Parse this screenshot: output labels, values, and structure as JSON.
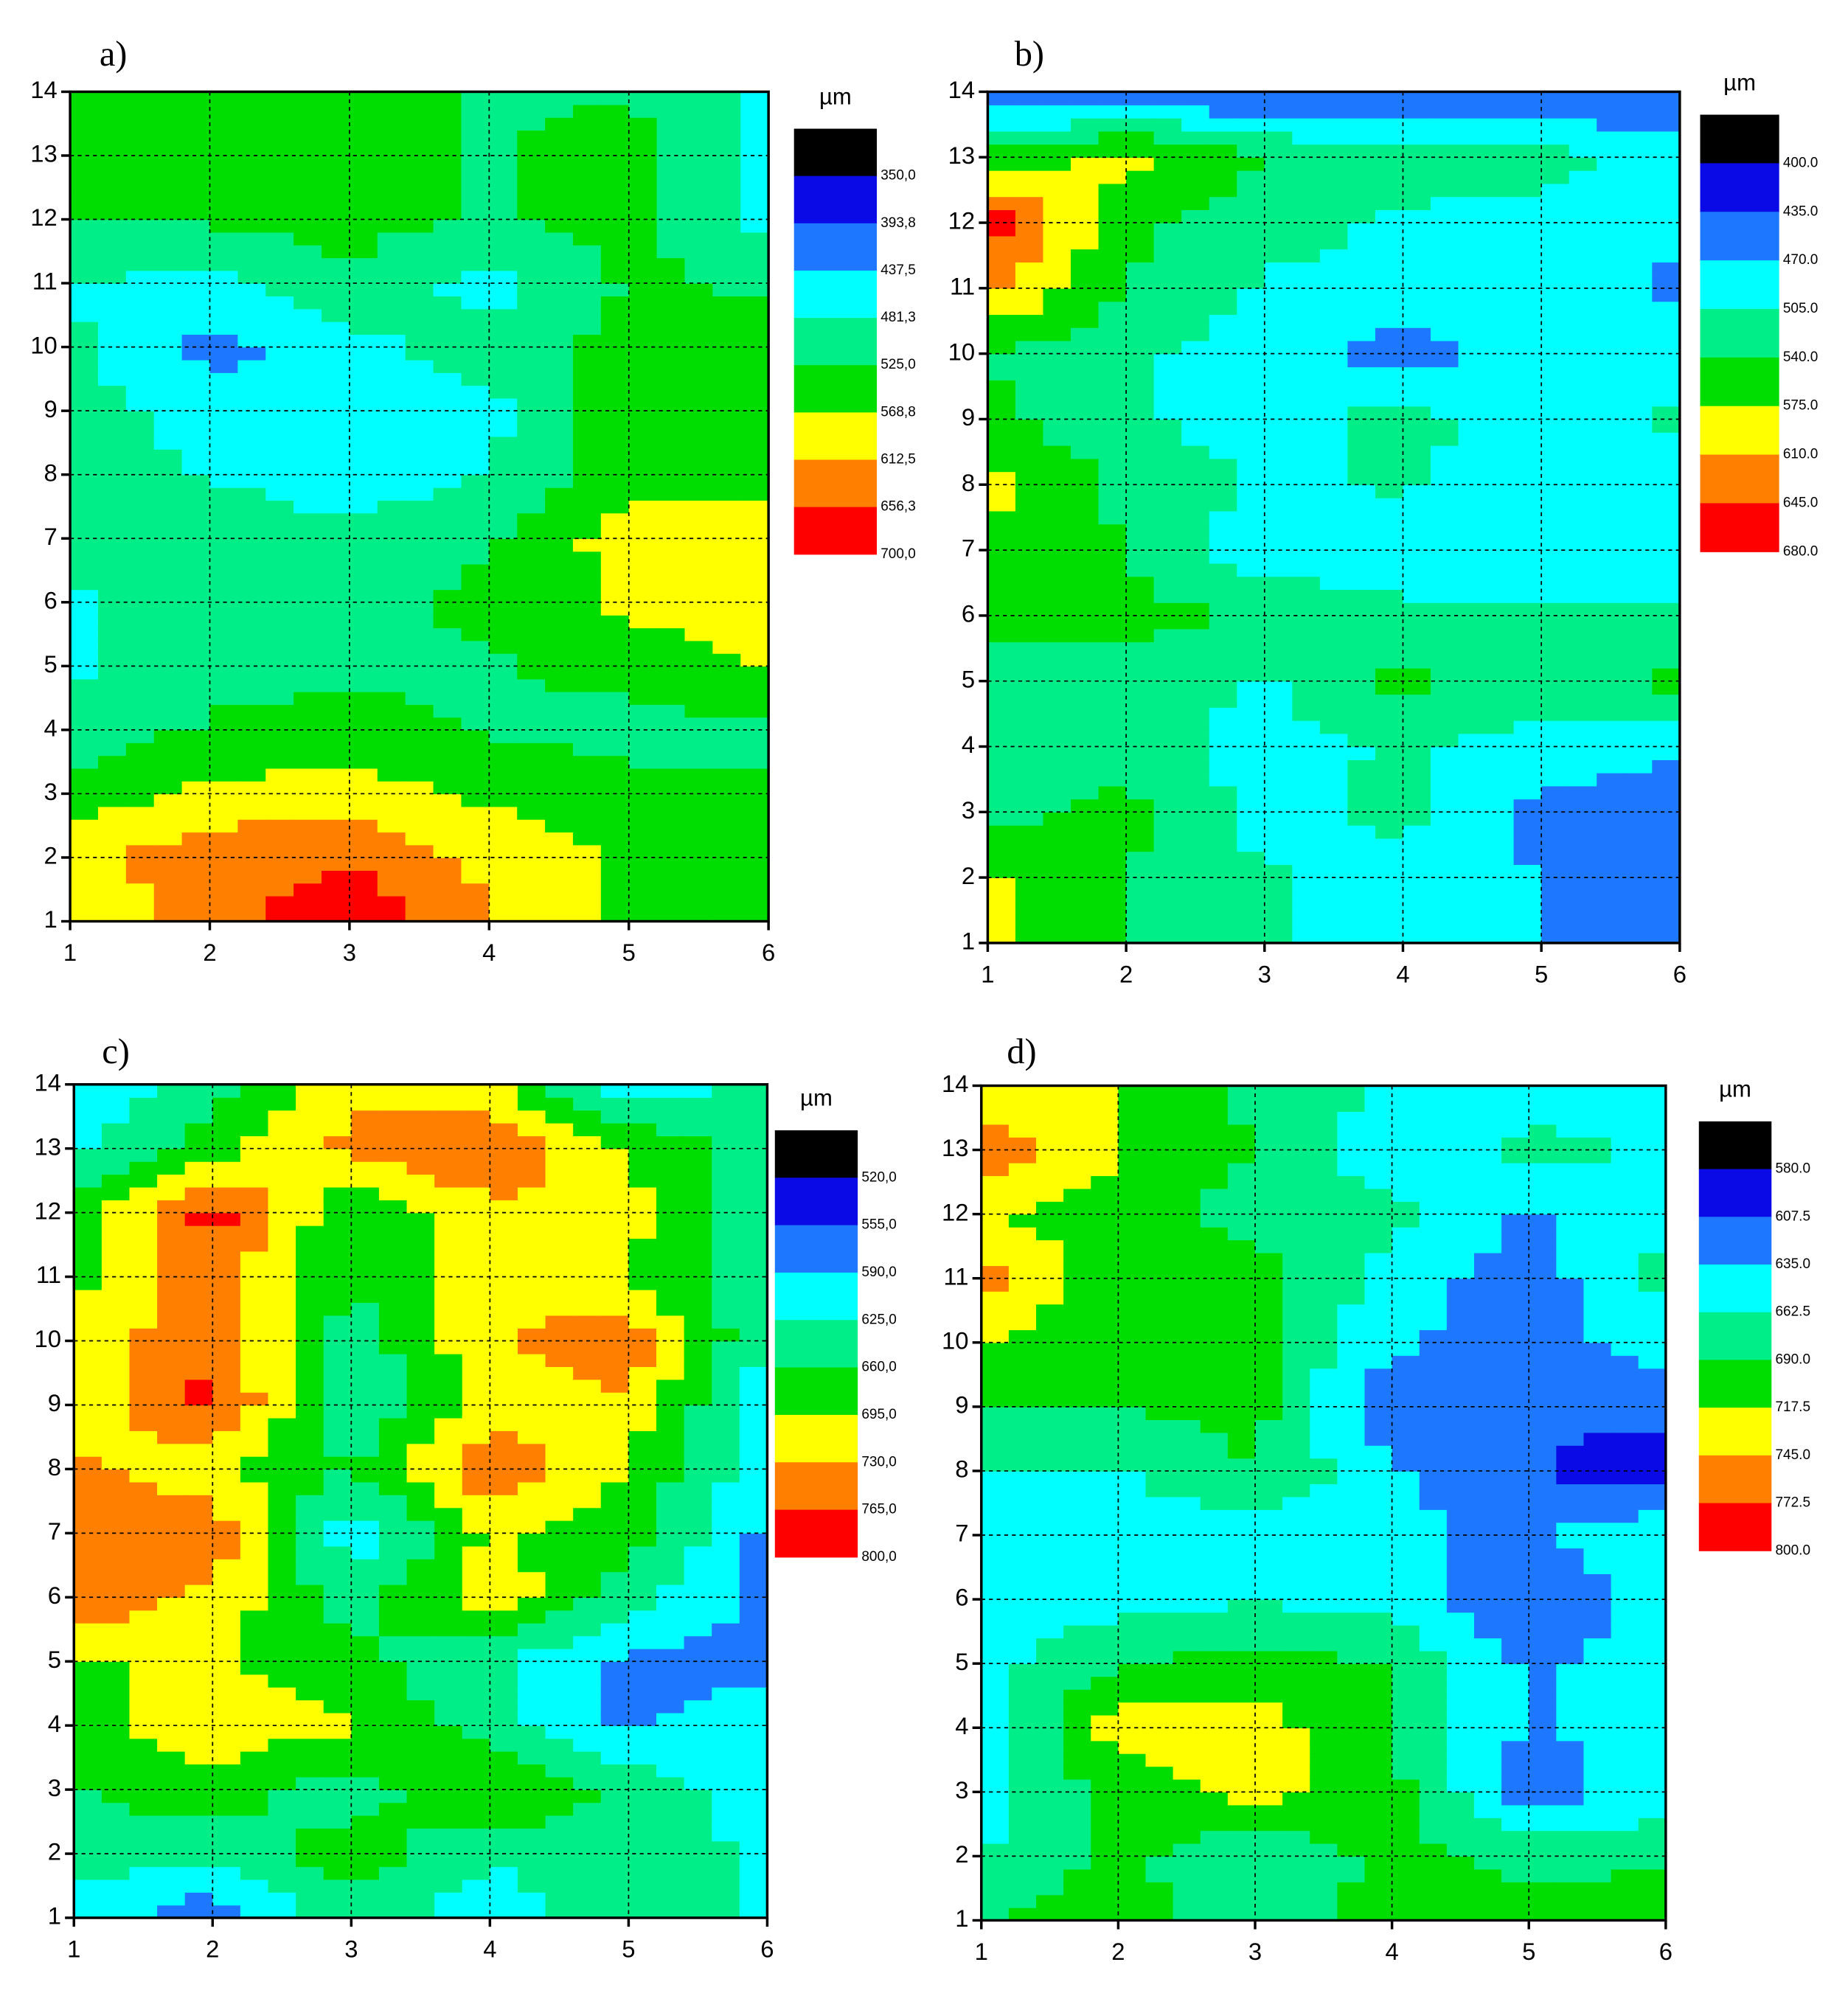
{
  "chart_data": [
    {
      "type": "contour",
      "label": "a)",
      "unit": "µm",
      "x": [
        1,
        2,
        3,
        4,
        5,
        6
      ],
      "y": [
        1,
        2,
        3,
        4,
        5,
        6,
        7,
        8,
        9,
        10,
        11,
        12,
        13,
        14
      ],
      "xlim": [
        1,
        6
      ],
      "ylim": [
        1,
        14
      ],
      "xticks": [
        1,
        2,
        3,
        4,
        5,
        6
      ],
      "yticks": [
        1,
        2,
        3,
        4,
        5,
        6,
        7,
        8,
        9,
        10,
        11,
        12,
        13,
        14
      ],
      "grid": true,
      "z": [
        [
          560,
          640,
          690,
          620,
          560,
          520
        ],
        [
          600,
          640,
          650,
          600,
          560,
          540
        ],
        [
          540,
          580,
          590,
          560,
          540,
          530
        ],
        [
          500,
          530,
          545,
          520,
          510,
          520
        ],
        [
          470,
          510,
          510,
          520,
          540,
          570
        ],
        [
          470,
          510,
          510,
          540,
          580,
          600
        ],
        [
          500,
          510,
          490,
          520,
          590,
          600
        ],
        [
          510,
          480,
          460,
          480,
          550,
          550
        ],
        [
          500,
          460,
          460,
          470,
          550,
          550
        ],
        [
          490,
          420,
          470,
          500,
          540,
          540
        ],
        [
          480,
          470,
          520,
          460,
          530,
          520
        ],
        [
          530,
          530,
          540,
          520,
          550,
          460
        ],
        [
          540,
          540,
          540,
          520,
          550,
          460
        ],
        [
          540,
          540,
          540,
          520,
          520,
          470
        ]
      ],
      "levels": [
        {
          "value": 350,
          "label": "350,0"
        },
        {
          "value": 393.8,
          "label": "393,8"
        },
        {
          "value": 437.5,
          "label": "437,5"
        },
        {
          "value": 481.3,
          "label": "481,3"
        },
        {
          "value": 525,
          "label": "525,0"
        },
        {
          "value": 568.8,
          "label": "568,8"
        },
        {
          "value": 612.5,
          "label": "612,5"
        },
        {
          "value": 656.3,
          "label": "656,3"
        },
        {
          "value": 700,
          "label": "700,0"
        }
      ],
      "colors": [
        "#000000",
        "#0a0ae6",
        "#1e78ff",
        "#00ffff",
        "#00ee88",
        "#00dd00",
        "#ffff00",
        "#ff8000",
        "#ff0000"
      ]
    },
    {
      "type": "contour",
      "label": "b)",
      "unit": "µm",
      "x": [
        1,
        2,
        3,
        4,
        5,
        6
      ],
      "y": [
        1,
        2,
        3,
        4,
        5,
        6,
        7,
        8,
        9,
        10,
        11,
        12,
        13,
        14
      ],
      "xlim": [
        1,
        6
      ],
      "ylim": [
        1,
        14
      ],
      "xticks": [
        1,
        2,
        3,
        4,
        5,
        6
      ],
      "yticks": [
        1,
        2,
        3,
        4,
        5,
        6,
        7,
        8,
        9,
        10,
        11,
        12,
        13,
        14
      ],
      "grid": true,
      "z": [
        [
          590,
          540,
          510,
          480,
          470,
          440
        ],
        [
          580,
          540,
          510,
          480,
          470,
          440
        ],
        [
          530,
          550,
          490,
          520,
          460,
          440
        ],
        [
          540,
          520,
          490,
          510,
          490,
          480
        ],
        [
          520,
          530,
          500,
          550,
          520,
          550
        ],
        [
          550,
          550,
          540,
          520,
          510,
          510
        ],
        [
          560,
          540,
          480,
          470,
          470,
          480
        ],
        [
          590,
          530,
          500,
          510,
          480,
          500
        ],
        [
          550,
          510,
          490,
          520,
          480,
          510
        ],
        [
          540,
          510,
          490,
          450,
          490,
          490
        ],
        [
          620,
          540,
          500,
          490,
          490,
          460
        ],
        [
          670,
          550,
          520,
          500,
          490,
          480
        ],
        [
          550,
          590,
          540,
          520,
          520,
          490
        ],
        [
          440,
          440,
          430,
          440,
          430,
          440
        ]
      ],
      "levels": [
        {
          "value": 400,
          "label": "400.0"
        },
        {
          "value": 435,
          "label": "435.0"
        },
        {
          "value": 470,
          "label": "470.0"
        },
        {
          "value": 505,
          "label": "505.0"
        },
        {
          "value": 540,
          "label": "540.0"
        },
        {
          "value": 575,
          "label": "575.0"
        },
        {
          "value": 610,
          "label": "610.0"
        },
        {
          "value": 645,
          "label": "645.0"
        },
        {
          "value": 680,
          "label": "680.0"
        }
      ],
      "colors": [
        "#000000",
        "#0a0ae6",
        "#1e78ff",
        "#00ffff",
        "#00ee88",
        "#00dd00",
        "#ffff00",
        "#ff8000",
        "#ff0000"
      ]
    },
    {
      "type": "contour",
      "label": "c)",
      "unit": "µm",
      "x": [
        1,
        2,
        3,
        4,
        5,
        6
      ],
      "y": [
        1,
        2,
        3,
        4,
        5,
        6,
        7,
        8,
        9,
        10,
        11,
        12,
        13,
        14
      ],
      "xlim": [
        1,
        6
      ],
      "ylim": [
        1,
        14
      ],
      "xticks": [
        1,
        2,
        3,
        4,
        5,
        6
      ],
      "yticks": [
        1,
        2,
        3,
        4,
        5,
        6,
        7,
        8,
        9,
        10,
        11,
        12,
        13,
        14
      ],
      "grid": true,
      "z": [
        [
          610,
          560,
          650,
          600,
          660,
          620
        ],
        [
          640,
          640,
          680,
          630,
          650,
          620
        ],
        [
          660,
          680,
          640,
          700,
          650,
          600
        ],
        [
          680,
          720,
          700,
          640,
          580,
          620
        ],
        [
          690,
          700,
          670,
          630,
          580,
          570
        ],
        [
          760,
          720,
          640,
          720,
          640,
          580
        ],
        [
          760,
          760,
          600,
          700,
          680,
          580
        ],
        [
          740,
          700,
          660,
          760,
          690,
          600
        ],
        [
          690,
          780,
          620,
          720,
          720,
          600
        ],
        [
          710,
          760,
          640,
          720,
          760,
          620
        ],
        [
          680,
          750,
          660,
          730,
          690,
          630
        ],
        [
          680,
          780,
          660,
          720,
          710,
          630
        ],
        [
          620,
          680,
          740,
          770,
          690,
          640
        ],
        [
          580,
          650,
          720,
          700,
          600,
          640
        ]
      ],
      "levels": [
        {
          "value": 520,
          "label": "520,0"
        },
        {
          "value": 555,
          "label": "555,0"
        },
        {
          "value": 590,
          "label": "590,0"
        },
        {
          "value": 625,
          "label": "625,0"
        },
        {
          "value": 660,
          "label": "660,0"
        },
        {
          "value": 695,
          "label": "695,0"
        },
        {
          "value": 730,
          "label": "730,0"
        },
        {
          "value": 765,
          "label": "765,0"
        },
        {
          "value": 800,
          "label": "800,0"
        }
      ],
      "colors": [
        "#000000",
        "#0a0ae6",
        "#1e78ff",
        "#00ffff",
        "#00ee88",
        "#00dd00",
        "#ffff00",
        "#ff8000",
        "#ff0000"
      ]
    },
    {
      "type": "contour",
      "label": "d)",
      "unit": "µm",
      "x": [
        1,
        2,
        3,
        4,
        5,
        6
      ],
      "y": [
        1,
        2,
        3,
        4,
        5,
        6,
        7,
        8,
        9,
        10,
        11,
        12,
        13,
        14
      ],
      "xlim": [
        1,
        6
      ],
      "ylim": [
        1,
        14
      ],
      "xticks": [
        1,
        2,
        3,
        4,
        5,
        6
      ],
      "yticks": [
        1,
        2,
        3,
        4,
        5,
        6,
        7,
        8,
        9,
        10,
        11,
        12,
        13,
        14
      ],
      "grid": true,
      "z": [
        [
          690,
          700,
          680,
          700,
          700,
          720
        ],
        [
          660,
          700,
          660,
          700,
          680,
          680
        ],
        [
          650,
          700,
          730,
          700,
          620,
          650
        ],
        [
          650,
          730,
          730,
          690,
          630,
          650
        ],
        [
          650,
          690,
          700,
          690,
          630,
          650
        ],
        [
          650,
          650,
          660,
          650,
          610,
          650
        ],
        [
          650,
          650,
          650,
          640,
          630,
          660
        ],
        [
          660,
          660,
          690,
          640,
          610,
          590
        ],
        [
          690,
          690,
          700,
          610,
          610,
          620
        ],
        [
          720,
          690,
          700,
          640,
          620,
          650
        ],
        [
          760,
          700,
          700,
          650,
          620,
          670
        ],
        [
          720,
          700,
          680,
          670,
          630,
          660
        ],
        [
          770,
          720,
          690,
          640,
          670,
          660
        ],
        [
          720,
          720,
          680,
          660,
          650,
          650
        ]
      ],
      "levels": [
        {
          "value": 580,
          "label": "580.0"
        },
        {
          "value": 607.5,
          "label": "607.5"
        },
        {
          "value": 635,
          "label": "635.0"
        },
        {
          "value": 662.5,
          "label": "662.5"
        },
        {
          "value": 690,
          "label": "690.0"
        },
        {
          "value": 717.5,
          "label": "717.5"
        },
        {
          "value": 745,
          "label": "745.0"
        },
        {
          "value": 772.5,
          "label": "772.5"
        },
        {
          "value": 800,
          "label": "800.0"
        }
      ],
      "colors": [
        "#000000",
        "#0a0ae6",
        "#1e78ff",
        "#00ffff",
        "#00ee88",
        "#00dd00",
        "#ffff00",
        "#ff8000",
        "#ff0000"
      ]
    }
  ]
}
